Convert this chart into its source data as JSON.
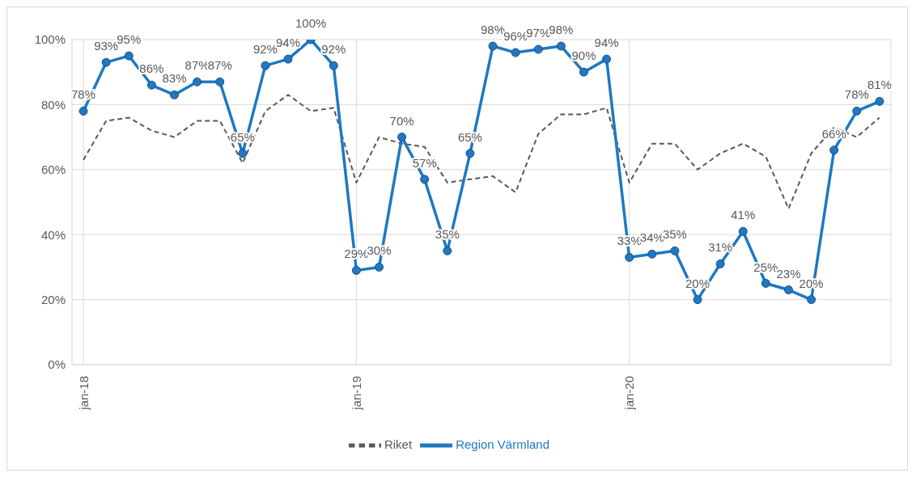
{
  "chart_data": {
    "type": "line",
    "categories": [
      "jan-18",
      null,
      null,
      null,
      null,
      null,
      null,
      null,
      null,
      null,
      null,
      null,
      "jan-19",
      null,
      null,
      null,
      null,
      null,
      null,
      null,
      null,
      null,
      null,
      null,
      "jan-20",
      null,
      null,
      null,
      null,
      null,
      null,
      null,
      null,
      null,
      null,
      null
    ],
    "series": [
      {
        "name": "Riket",
        "color": "#595959",
        "line_style": "dashed",
        "marker": "none",
        "values": [
          63,
          75,
          76,
          72,
          70,
          75,
          75,
          62,
          78,
          83,
          78,
          79,
          56,
          70,
          68,
          67,
          56,
          57,
          58,
          53,
          71,
          77,
          77,
          79,
          56,
          68,
          68,
          60,
          65,
          68,
          64,
          48,
          65,
          73,
          70,
          76
        ]
      },
      {
        "name": "Region Värmland",
        "color": "#1f78c1",
        "line_style": "solid",
        "marker": "circle",
        "values": [
          78,
          93,
          95,
          86,
          83,
          87,
          87,
          65,
          92,
          94,
          100,
          92,
          29,
          30,
          70,
          57,
          35,
          65,
          98,
          96,
          97,
          98,
          90,
          94,
          33,
          34,
          35,
          20,
          31,
          41,
          25,
          23,
          20,
          66,
          78,
          81
        ],
        "value_labels": [
          "78%",
          "93%",
          "95%",
          "86%",
          "83%",
          "87%",
          "87%",
          "65%",
          "92%",
          "94%",
          "100%",
          "92%",
          "29%",
          "30%",
          "70%",
          "57%",
          "35%",
          "65%",
          "98%",
          "96%",
          "97%",
          "98%",
          "90%",
          "94%",
          "33%",
          "34%",
          "35%",
          "20%",
          "31%",
          "41%",
          "25%",
          "23%",
          "20%",
          "66%",
          "78%",
          "81%"
        ]
      }
    ],
    "ylim": [
      0,
      100
    ],
    "yticks": [
      {
        "value": 0,
        "label": "0%"
      },
      {
        "value": 20,
        "label": "20%"
      },
      {
        "value": 40,
        "label": "40%"
      },
      {
        "value": 60,
        "label": "60%"
      },
      {
        "value": 80,
        "label": "80%"
      },
      {
        "value": 100,
        "label": "100%"
      }
    ],
    "grid": true,
    "legend": "bottom"
  }
}
